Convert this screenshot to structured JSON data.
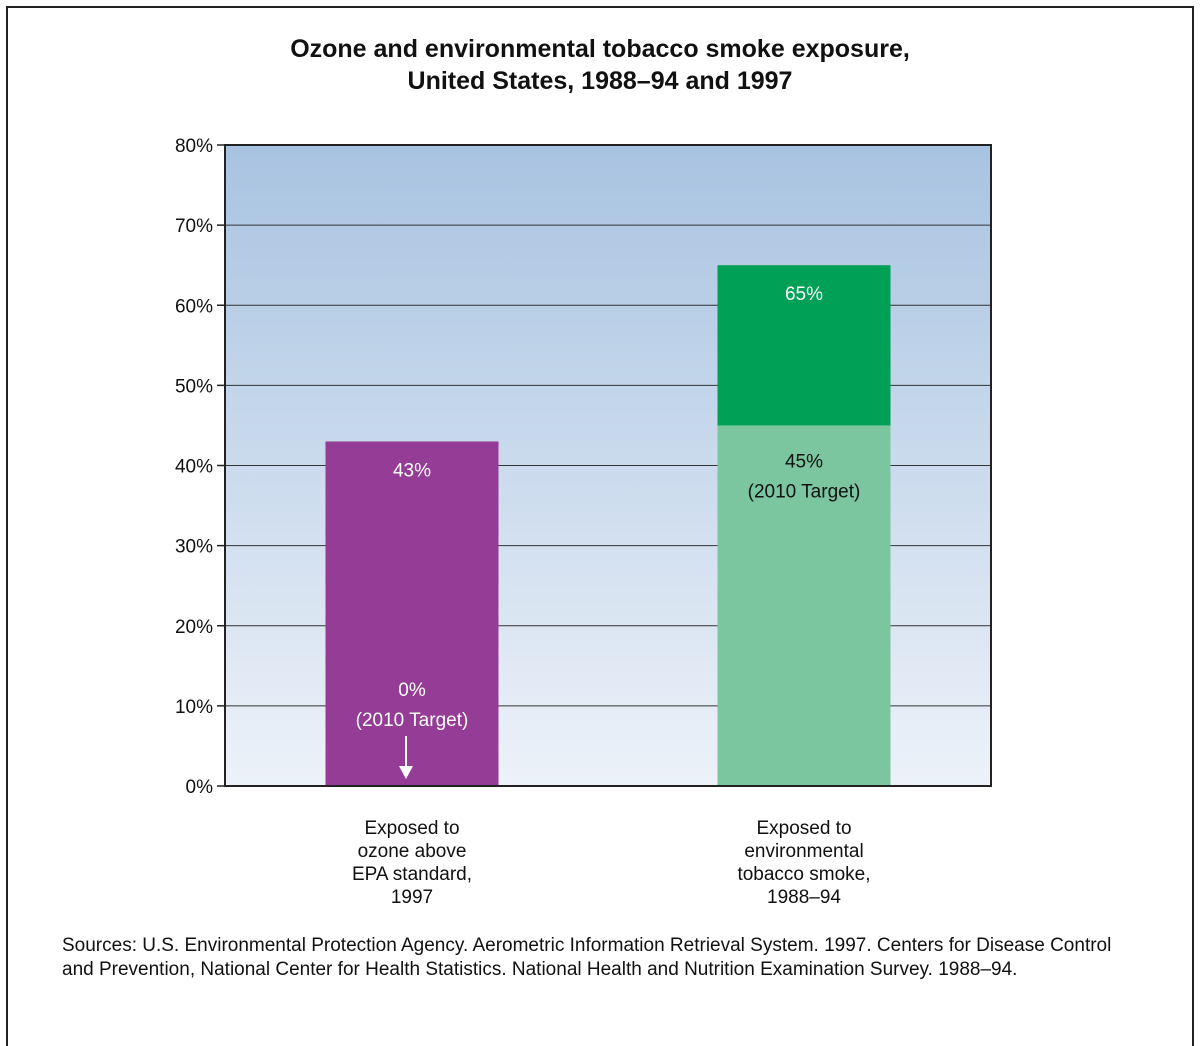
{
  "chart_data": {
    "type": "bar",
    "title_lines": [
      "Ozone and environmental tobacco smoke exposure,",
      "United States, 1988–94 and 1997"
    ],
    "ylim": [
      0,
      80
    ],
    "y_ticks": [
      0,
      10,
      20,
      30,
      40,
      50,
      60,
      70,
      80
    ],
    "y_tick_labels": [
      "0%",
      "10%",
      "20%",
      "30%",
      "40%",
      "50%",
      "60%",
      "70%",
      "80%"
    ],
    "grid": true,
    "bars": [
      {
        "category_lines": [
          "Exposed to",
          "ozone above",
          "EPA standard,",
          "1997"
        ],
        "value": 43,
        "value_label": "43%",
        "target": 0,
        "target_label_lines": [
          "0%",
          "(2010 Target)"
        ],
        "color": "#953c96",
        "target_arrow": true
      },
      {
        "category_lines": [
          "Exposed to",
          "environmental",
          "tobacco smoke,",
          "1988–94"
        ],
        "value": 65,
        "value_label": "65%",
        "target": 45,
        "target_label_lines": [
          "45%",
          "(2010 Target)"
        ],
        "color": "#00a057",
        "target_color": "#7bc59f"
      }
    ]
  },
  "sources": "Sources: U.S. Environmental Protection Agency. Aerometric Information Retrieval System. 1997. Centers for Disease Control and Prevention, National Center for Health Statistics. National Health and Nutrition Examination Survey. 1988–94."
}
